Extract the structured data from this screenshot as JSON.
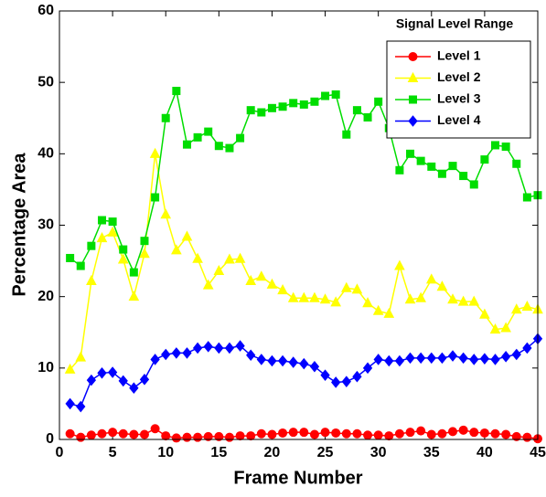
{
  "chart_data": {
    "type": "line",
    "xlabel": "Frame Number",
    "ylabel": "Percentage Area",
    "legend_title": "Signal Level Range",
    "legend": "upper right",
    "grid": false,
    "x": [
      1,
      2,
      3,
      4,
      5,
      6,
      7,
      8,
      9,
      10,
      11,
      12,
      13,
      14,
      15,
      16,
      17,
      18,
      19,
      20,
      21,
      22,
      23,
      24,
      25,
      26,
      27,
      28,
      29,
      30,
      31,
      32,
      33,
      34,
      35,
      36,
      37,
      38,
      39,
      40,
      41,
      42,
      43,
      44,
      45
    ],
    "xlim": [
      0,
      45
    ],
    "xticks": [
      0,
      5,
      10,
      15,
      20,
      25,
      30,
      35,
      40,
      45
    ],
    "ylim": [
      0,
      60
    ],
    "yticks": [
      0,
      10,
      20,
      30,
      40,
      50,
      60
    ],
    "series": [
      {
        "name": "Level 1",
        "color": "#ff0000",
        "marker": "circle",
        "values": [
          0.8,
          0.3,
          0.6,
          0.8,
          1.0,
          0.8,
          0.7,
          0.7,
          1.5,
          0.5,
          0.2,
          0.3,
          0.3,
          0.4,
          0.4,
          0.3,
          0.5,
          0.5,
          0.8,
          0.7,
          0.9,
          1.0,
          1.0,
          0.7,
          1.0,
          0.9,
          0.8,
          0.8,
          0.6,
          0.6,
          0.5,
          0.8,
          1.0,
          1.2,
          0.7,
          0.8,
          1.1,
          1.3,
          1.0,
          0.9,
          0.8,
          0.7,
          0.4,
          0.3,
          0.1
        ]
      },
      {
        "name": "Level 2",
        "color": "#ffff00",
        "marker": "triangle",
        "values": [
          9.8,
          11.5,
          22.2,
          28.2,
          29.0,
          25.2,
          20.0,
          26.0,
          40.0,
          31.5,
          26.5,
          28.4,
          25.3,
          21.6,
          23.6,
          25.2,
          25.3,
          22.2,
          22.8,
          21.7,
          20.9,
          19.8,
          19.8,
          19.8,
          19.6,
          19.2,
          21.2,
          21.0,
          19.1,
          18.0,
          17.6,
          24.3,
          19.6,
          19.8,
          22.4,
          21.4,
          19.6,
          19.3,
          19.3,
          17.5,
          15.4,
          15.6,
          18.2,
          18.6,
          18.2
        ]
      },
      {
        "name": "Level 3",
        "color": "#00dd00",
        "marker": "square",
        "values": [
          25.4,
          24.3,
          27.1,
          30.7,
          30.5,
          26.6,
          23.4,
          27.8,
          33.9,
          45.0,
          48.8,
          41.3,
          42.3,
          43.1,
          41.1,
          40.8,
          42.2,
          46.1,
          45.8,
          46.4,
          46.6,
          47.1,
          46.9,
          47.3,
          48.1,
          48.3,
          42.7,
          46.1,
          45.1,
          47.3,
          43.6,
          37.7,
          40.0,
          39.0,
          38.2,
          37.2,
          38.3,
          36.9,
          35.7,
          39.2,
          41.2,
          41.0,
          38.6,
          33.9,
          34.2
        ]
      },
      {
        "name": "Level 4",
        "color": "#0000ff",
        "marker": "diamond",
        "values": [
          5.0,
          4.6,
          8.3,
          9.3,
          9.4,
          8.2,
          7.2,
          8.4,
          11.2,
          11.9,
          12.1,
          12.1,
          12.8,
          13.0,
          12.8,
          12.8,
          13.1,
          11.8,
          11.2,
          11.0,
          11.0,
          10.8,
          10.6,
          10.2,
          9.0,
          8.0,
          8.1,
          8.8,
          10.0,
          11.2,
          11.0,
          11.0,
          11.4,
          11.4,
          11.4,
          11.4,
          11.7,
          11.4,
          11.2,
          11.3,
          11.2,
          11.6,
          11.9,
          12.8,
          14.1
        ]
      }
    ]
  }
}
